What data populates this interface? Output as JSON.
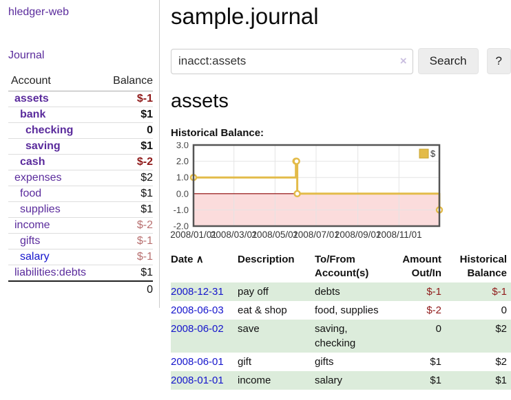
{
  "brand": {
    "title": "hledger-web"
  },
  "sidebar": {
    "nav": {
      "journal_label": "Journal"
    },
    "accounts_table": {
      "headers": {
        "account": "Account",
        "balance": "Balance"
      },
      "rows": [
        {
          "name": "assets",
          "balance": "$-1",
          "depth": 1,
          "bold": true,
          "negative": "strong"
        },
        {
          "name": "bank",
          "balance": "$1",
          "depth": 2,
          "bold": true
        },
        {
          "name": "checking",
          "balance": "0",
          "depth": 3,
          "bold": true
        },
        {
          "name": "saving",
          "balance": "$1",
          "depth": 3,
          "bold": true
        },
        {
          "name": "cash",
          "balance": "$-2",
          "depth": 2,
          "bold": true,
          "negative": "strong"
        },
        {
          "name": "expenses",
          "balance": "$2",
          "depth": 1
        },
        {
          "name": "food",
          "balance": "$1",
          "depth": 2
        },
        {
          "name": "supplies",
          "balance": "$1",
          "depth": 2
        },
        {
          "name": "income",
          "balance": "$-2",
          "depth": 1,
          "negative": "soft"
        },
        {
          "name": "gifts",
          "balance": "$-1",
          "depth": 2,
          "negative": "soft"
        },
        {
          "name": "salary",
          "balance": "$-1",
          "depth": 2,
          "negative": "soft",
          "blue": true
        },
        {
          "name": "liabilities:debts",
          "balance": "$1",
          "depth": 1
        }
      ],
      "total": "0"
    }
  },
  "main": {
    "title": "sample.journal",
    "search": {
      "value": "inacct:assets",
      "clear_icon": "×",
      "button_label": "Search",
      "help_label": "?"
    },
    "account_heading": "assets",
    "chart_label": "Historical Balance:"
  },
  "chart_data": {
    "type": "line",
    "title": "Historical Balance:",
    "step": true,
    "series": [
      {
        "name": "$",
        "color": "#e3bb49",
        "points": [
          {
            "x": "2008-01-01",
            "y": 1
          },
          {
            "x": "2008-06-01",
            "y": 2
          },
          {
            "x": "2008-06-02",
            "y": 2
          },
          {
            "x": "2008-06-03",
            "y": 0
          },
          {
            "x": "2008-12-31",
            "y": -1
          }
        ]
      }
    ],
    "xrange": [
      "2008-01-01",
      "2008-12-31"
    ],
    "ylim": [
      -2.0,
      3.0
    ],
    "yticks": [
      3.0,
      2.0,
      1.0,
      0.0,
      -1.0,
      -2.0
    ],
    "xticks": [
      "2008/01/01",
      "2008/03/01",
      "2008/05/01",
      "2008/07/01",
      "2008/09/01",
      "2008/11/01"
    ],
    "legend": {
      "label": "$",
      "position": "top-right"
    },
    "grid": true,
    "colors": {
      "negative_region": "#fbdcdc",
      "zero_line": "#8b0000",
      "grid": "#e4e4e4",
      "frame": "#545454"
    }
  },
  "transactions": {
    "sort_icon": "∧",
    "headers": {
      "date": "Date",
      "description": "Description",
      "accounts": "To/From Account(s)",
      "amount": "Amount Out/In",
      "balance": "Historical Balance"
    },
    "rows": [
      {
        "date": "2008-12-31",
        "description": "pay off",
        "accounts": "debts",
        "amount": "$-1",
        "balance": "$-1",
        "amount_neg": true,
        "balance_neg": true
      },
      {
        "date": "2008-06-03",
        "description": "eat & shop",
        "accounts": "food, supplies",
        "amount": "$-2",
        "balance": "0",
        "amount_neg": true
      },
      {
        "date": "2008-06-02",
        "description": "save",
        "accounts": "saving, checking",
        "amount": "0",
        "balance": "$2"
      },
      {
        "date": "2008-06-01",
        "description": "gift",
        "accounts": "gifts",
        "amount": "$1",
        "balance": "$2"
      },
      {
        "date": "2008-01-01",
        "description": "income",
        "accounts": "salary",
        "amount": "$1",
        "balance": "$1"
      }
    ]
  }
}
